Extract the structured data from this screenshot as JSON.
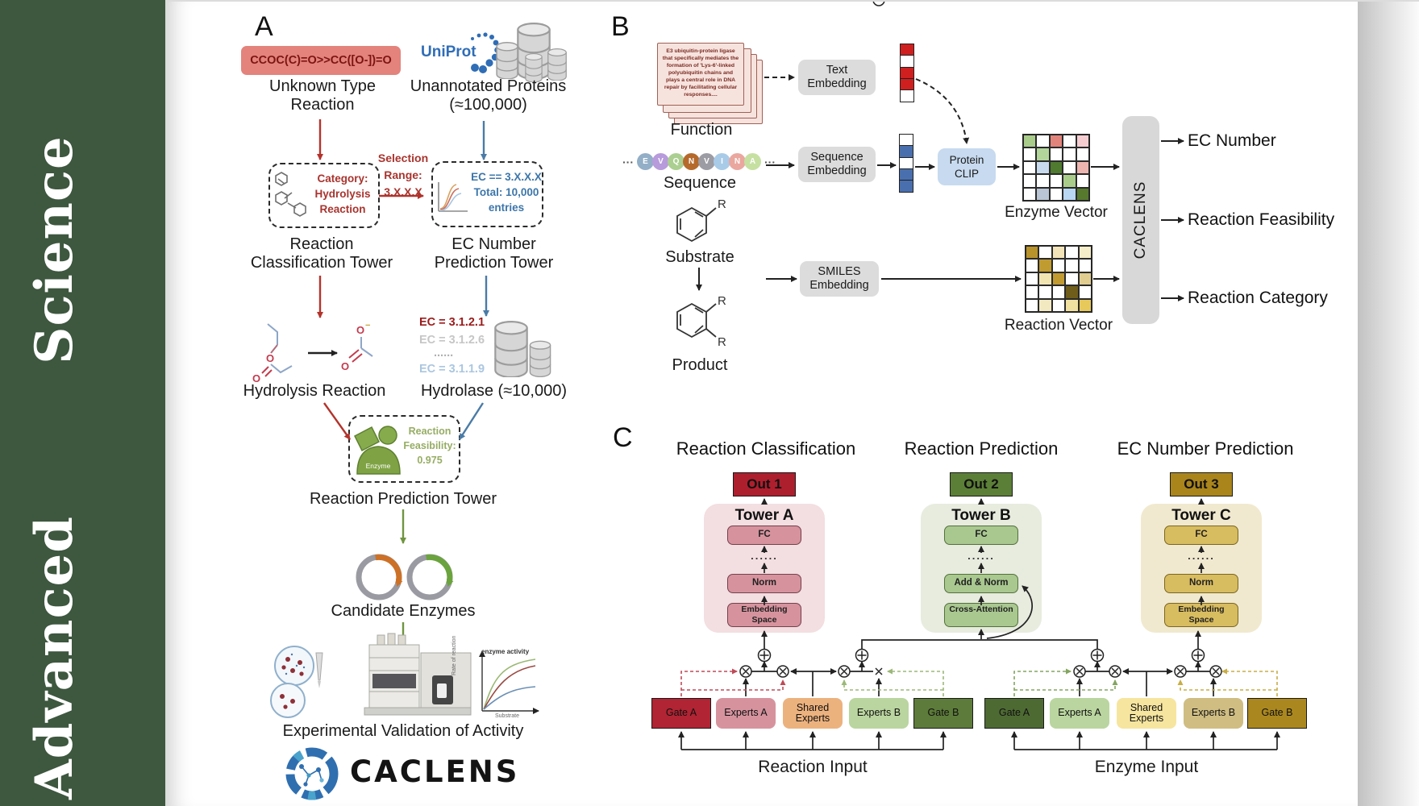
{
  "sidebar": {
    "journal": "Advanced Science"
  },
  "a": {
    "panel": "A",
    "smiles": "CCOC(C)=O>>CC([O-])=O",
    "unknown": "Unknown Type Reaction",
    "uniprot": "UniProt",
    "unannotated": "Unannotated Proteins (≈100,000)",
    "selection": "Selection Range: 3.X.X.X",
    "category": "Category: Hydrolysis Reaction",
    "ecbox": "EC == 3.X.X.X Total: 10,000 entries",
    "rc_tower": "Reaction Classification Tower",
    "ec_tower": "EC Number Prediction Tower",
    "hydrolysis": "Hydrolysis Reaction",
    "hydrolase": "Hydrolase (≈10,000)",
    "ec1": "EC = 3.1.2.1",
    "ec2": "EC = 3.1.2.6",
    "ec_dots": "......",
    "ec3": "EC = 3.1.1.9",
    "enzyme": "Enzyme",
    "feasibility": "Reaction Feasibility: 0.975",
    "rp_tower": "Reaction Prediction Tower",
    "candidates": "Candidate Enzymes",
    "validation": "Experimental Validation of Activity",
    "chart": {
      "series_label": "enzyme activity",
      "ylabel": "Rate of reaction",
      "xlabel": "Substrate"
    },
    "logo": "CACLENS"
  },
  "b": {
    "panel": "B",
    "function_text": "E3 ubiquitin-protein ligase that specifically mediates the formation of 'Lys-6'-linked polyubiquitin chains and plays a central role in DNA repair by facilitating cellular responses....",
    "function": "Function",
    "sequence": "Sequence",
    "dots": "···",
    "seq_letters": [
      {
        "t": "E",
        "c": "#93aec7"
      },
      {
        "t": "V",
        "c": "#b79bdb"
      },
      {
        "t": "Q",
        "c": "#abcf90"
      },
      {
        "t": "N",
        "c": "#b56a2b"
      },
      {
        "t": "V",
        "c": "#9c9ca4"
      },
      {
        "t": "I",
        "c": "#a8cbe8"
      },
      {
        "t": "N",
        "c": "#eaa79f"
      },
      {
        "t": "A",
        "c": "#c6e0a2"
      }
    ],
    "substrate": "Substrate",
    "product": "Product",
    "r_label": "R",
    "text_emb": "Text Embedding",
    "seq_emb": "Sequence Embedding",
    "smiles_emb": "SMILES Embedding",
    "clip": "Protein CLIP",
    "enzyme_vec_label": "Enzyme Vector",
    "reaction_vec_label": "Reaction Vector",
    "caclens": "CACLENS",
    "out_ec": "EC Number",
    "out_feasibility": "Reaction Feasibility",
    "out_category": "Reaction Category",
    "text_vector": [
      "#cf1f1f",
      "#ffffff",
      "#cf1f1f",
      "#cf1f1f",
      "#ffffff"
    ],
    "seq_vector": [
      "#ffffff",
      "#4a6fae",
      "#ffffff",
      "#4a6fae",
      "#4a6fae"
    ],
    "enzyme_matrix": [
      "#a9cc8b",
      "#ffffff",
      "#e2837b",
      "#ffffff",
      "#f5cdd1",
      "#ffffff",
      "#b3d59b",
      "#ffffff",
      "#ffffff",
      "#ffffff",
      "#ffffff",
      "#c8daee",
      "#4f7a2f",
      "#ffffff",
      "#edb5b0",
      "#ffffff",
      "#ffffff",
      "#ffffff",
      "#a9cc8b",
      "#ffffff",
      "#ffffff",
      "#b9c5d4",
      "#ffffff",
      "#b9d6f2",
      "#56792e"
    ],
    "reaction_matrix": [
      "#b8922b",
      "#ffffff",
      "#f3e5b9",
      "#ffffff",
      "#f6edc9",
      "#ffffff",
      "#c09b2f",
      "#ffffff",
      "#ffffff",
      "#ffffff",
      "#ffffff",
      "#f3e5b2",
      "#c19a31",
      "#ffffff",
      "#e1cd90",
      "#ffffff",
      "#ffffff",
      "#ffffff",
      "#6f5d1b",
      "#ffffff",
      "#ffffff",
      "#f3e9c1",
      "#ffffff",
      "#f1e1a1",
      "#e7c85b"
    ]
  },
  "c": {
    "panel": "C",
    "headers": [
      "Reaction Classification",
      "Reaction Prediction",
      "EC Number Prediction"
    ],
    "outs": [
      {
        "label": "Out 1",
        "bg": "#ae1f2e"
      },
      {
        "label": "Out 2",
        "bg": "#5c7f37"
      },
      {
        "label": "Out 3",
        "bg": "#aa851c"
      }
    ],
    "towers": [
      {
        "title": "Tower A",
        "fc": "FC",
        "dots": "......",
        "mid": "Norm",
        "low": "Embedding Space"
      },
      {
        "title": "Tower B",
        "fc": "FC",
        "dots": "......",
        "mid": "Add & Norm",
        "low": "Cross-Attention"
      },
      {
        "title": "Tower C",
        "fc": "FC",
        "dots": "......",
        "mid": "Norm",
        "low": "Embedding Space"
      }
    ],
    "groups": [
      {
        "label": "Reaction Input",
        "boxes": [
          {
            "t": "Gate A",
            "bg": "#b12433",
            "gate": true
          },
          {
            "t": "Experts A",
            "bg": "#d6939e"
          },
          {
            "t": "Shared Experts",
            "bg": "#ecb27e"
          },
          {
            "t": "Experts B",
            "bg": "#bad59f"
          },
          {
            "t": "Gate B",
            "bg": "#5d7b3a",
            "gate": true
          }
        ]
      },
      {
        "label": "Enzyme Input",
        "boxes": [
          {
            "t": "Gate A",
            "bg": "#4e6a33",
            "gate": true
          },
          {
            "t": "Experts A",
            "bg": "#bad59f"
          },
          {
            "t": "Shared Experts",
            "bg": "#f6e59f"
          },
          {
            "t": "Experts B",
            "bg": "#cfbd82"
          },
          {
            "t": "Gate B",
            "bg": "#ab881f",
            "gate": true
          }
        ]
      }
    ]
  }
}
